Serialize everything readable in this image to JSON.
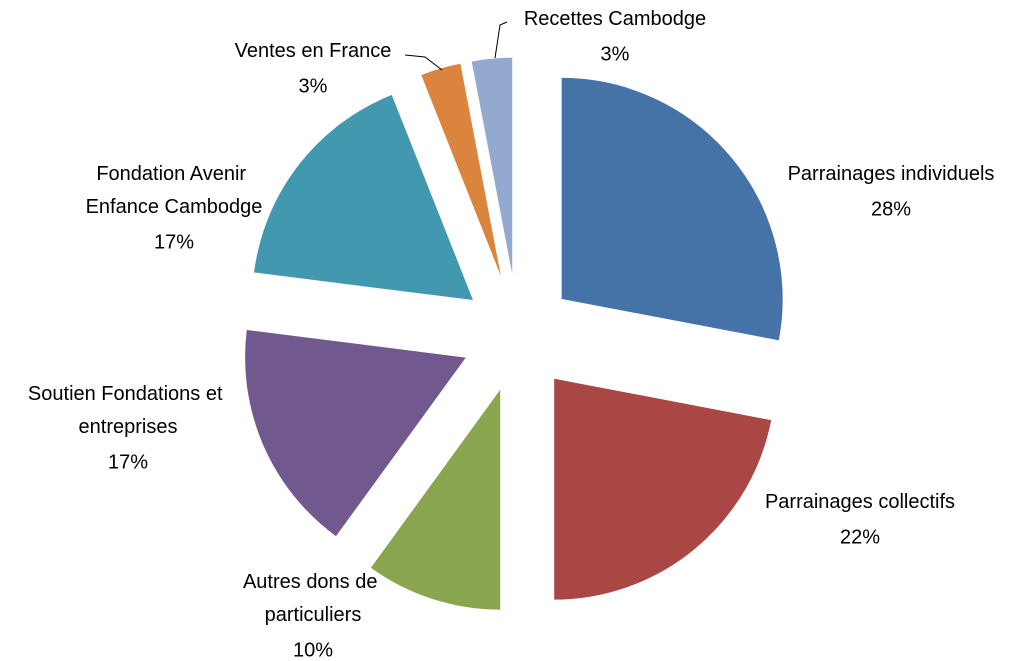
{
  "chart_data": {
    "type": "pie",
    "categories": [
      "Parrainages individuels",
      "Parrainages collectifs",
      "Autres dons de particuliers",
      "Soutien Fondations et entreprises",
      "Fondation Avenir Enfance Cambodge",
      "Ventes en France",
      "Recettes Cambodge"
    ],
    "values": [
      28,
      22,
      10,
      17,
      17,
      3,
      3
    ],
    "value_labels": [
      "28%",
      "22%",
      "10%",
      "17%",
      "17%",
      "3%",
      "3%"
    ],
    "colors": [
      "#4572a7",
      "#aa4643",
      "#89a54e",
      "#71588f",
      "#4198af",
      "#db843d",
      "#93a9cf"
    ]
  }
}
